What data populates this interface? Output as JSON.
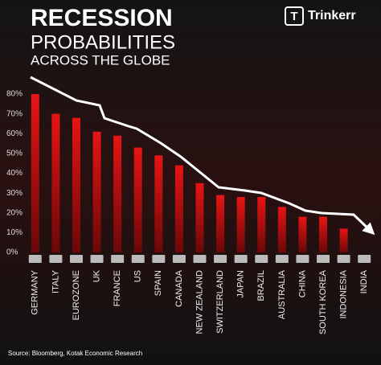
{
  "chart_data": {
    "type": "bar",
    "title": "RECESSION",
    "subtitle": "PROBABILITIES",
    "subtitle2": "ACROSS THE GLOBE",
    "brand": "Trinkerr",
    "brand_icon": "T",
    "source": "Source: Bloomberg, Kotak Economic Research",
    "categories": [
      "GERMANY",
      "ITALY",
      "EUROZONE",
      "UK",
      "FRANCE",
      "US",
      "SPAIN",
      "CANADA",
      "NEW ZEALAND",
      "SWITZERLAND",
      "JAPAN",
      "BRAZIL",
      "AUSTRALIA",
      "CHINA",
      "SOUTH KOREA",
      "INDONESIA",
      "INDIA"
    ],
    "values": [
      80,
      70,
      68,
      61,
      59,
      53,
      49,
      44,
      35,
      29,
      28,
      28,
      23,
      18,
      18,
      12,
      0
    ],
    "color": "#e01010",
    "ylim": [
      0,
      80
    ],
    "yticks": [
      {
        "value": 0,
        "label": "0%"
      },
      {
        "value": 10,
        "label": "10%"
      },
      {
        "value": 20,
        "label": "20%"
      },
      {
        "value": 30,
        "label": "30%"
      },
      {
        "value": 40,
        "label": "40%"
      },
      {
        "value": 50,
        "label": "50%"
      },
      {
        "value": 60,
        "label": "60%"
      },
      {
        "value": 70,
        "label": "70%"
      },
      {
        "value": 80,
        "label": "80%"
      }
    ],
    "grid": false
  }
}
